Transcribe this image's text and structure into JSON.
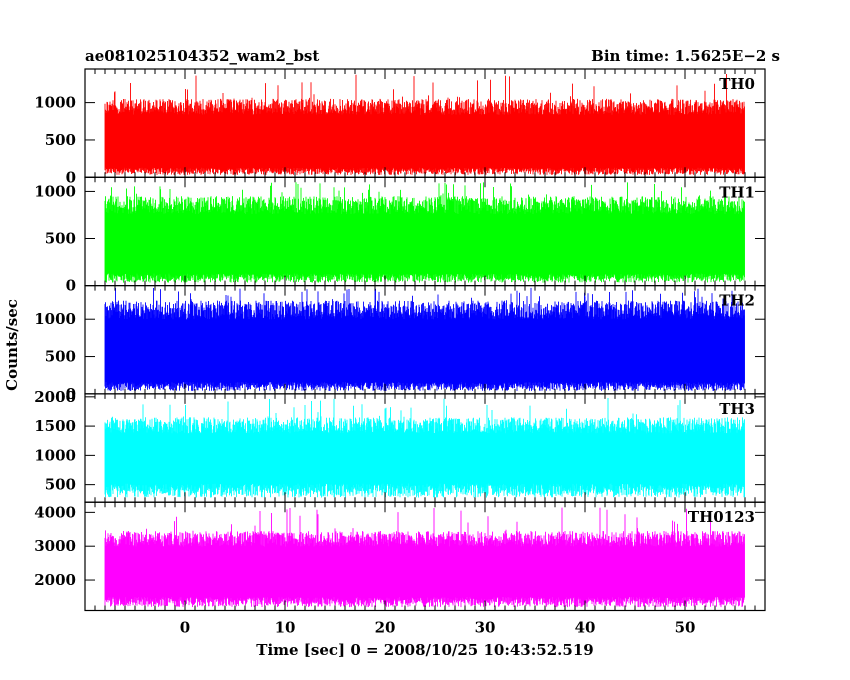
{
  "header": {
    "title": "ae081025104352_wam2_bst",
    "bin_time": "Bin time: 1.5625E−2 s"
  },
  "chart_data": {
    "type": "line",
    "title": "ae081025104352_wam2_bst",
    "subtitle": "Bin time: 1.5625E−2 s",
    "xlabel": "Time [sec] 0 = 2008/10/25 10:43:52.519",
    "ylabel": "Counts/sec",
    "xlim": [
      -10,
      58
    ],
    "data_x_range": [
      -8,
      56
    ],
    "bin_time_s": 0.015625,
    "x_ticks": [
      0,
      10,
      20,
      30,
      40,
      50
    ],
    "x_tick_labels": [
      "0",
      "10",
      "20",
      "30",
      "40",
      "50"
    ],
    "grid": false,
    "panels": [
      {
        "name": "TH0",
        "color": "#ff0000",
        "ylim": [
          0,
          1450
        ],
        "y_ticks": [
          0,
          500,
          1000
        ],
        "y_tick_labels": [
          "0",
          "500",
          "1000"
        ],
        "typical_min": 80,
        "typical_max": 1050,
        "peak_max": 1400
      },
      {
        "name": "TH1",
        "color": "#00ff00",
        "ylim": [
          0,
          1150
        ],
        "y_ticks": [
          0,
          500,
          1000
        ],
        "y_tick_labels": [
          "0",
          "500",
          "1000"
        ],
        "typical_min": 80,
        "typical_max": 950,
        "peak_max": 1100
      },
      {
        "name": "TH2",
        "color": "#0000ff",
        "ylim": [
          0,
          1450
        ],
        "y_ticks": [
          0,
          500,
          1000
        ],
        "y_tick_labels": [
          "0",
          "500",
          "1000"
        ],
        "typical_min": 100,
        "typical_max": 1250,
        "peak_max": 1420
      },
      {
        "name": "TH3",
        "color": "#00ffff",
        "ylim": [
          200,
          2050
        ],
        "y_ticks": [
          500,
          1000,
          1500,
          2000
        ],
        "y_tick_labels": [
          "500",
          "1000",
          "1500",
          "2000"
        ],
        "typical_min": 400,
        "typical_max": 1650,
        "peak_max": 2000
      },
      {
        "name": "TH0123",
        "color": "#ff00ff",
        "ylim": [
          1100,
          4300
        ],
        "y_ticks": [
          2000,
          3000,
          4000
        ],
        "y_tick_labels": [
          "2000",
          "3000",
          "4000"
        ],
        "typical_min": 1350,
        "typical_max": 3450,
        "peak_max": 4150
      }
    ]
  }
}
